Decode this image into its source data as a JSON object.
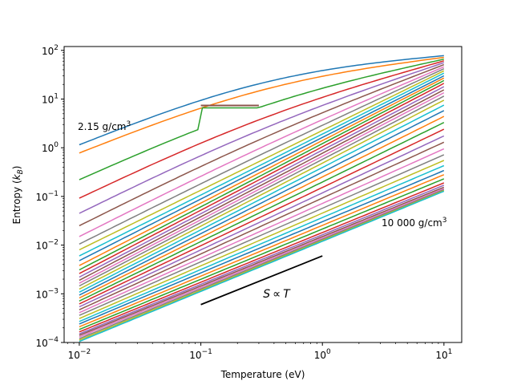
{
  "chart_data": {
    "type": "line",
    "xscale": "log",
    "yscale": "log",
    "xlabel": "Temperature (eV)",
    "ylabel": "Entropy (k_B)",
    "ylabel_main": "Entropy (",
    "ylabel_sym": "k",
    "ylabel_sub": "B",
    "ylabel_close": ")",
    "xlim": [
      0.0075,
      14
    ],
    "ylim": [
      0.0001,
      120
    ],
    "xticks": [
      {
        "value": 0.01,
        "base": "10",
        "exp": "−2"
      },
      {
        "value": 0.1,
        "base": "10",
        "exp": "−1"
      },
      {
        "value": 1,
        "base": "10",
        "exp": "0"
      },
      {
        "value": 10,
        "base": "10",
        "exp": "1"
      }
    ],
    "yticks": [
      {
        "value": 0.0001,
        "base": "10",
        "exp": "−4"
      },
      {
        "value": 0.001,
        "base": "10",
        "exp": "−3"
      },
      {
        "value": 0.01,
        "base": "10",
        "exp": "−2"
      },
      {
        "value": 0.1,
        "base": "10",
        "exp": "−1"
      },
      {
        "value": 1,
        "base": "10",
        "exp": "0"
      },
      {
        "value": 10,
        "base": "10",
        "exp": "1"
      },
      {
        "value": 100,
        "base": "10",
        "exp": "2"
      }
    ],
    "series_summary": {
      "count": 40,
      "density_min_label": "2.15 g/cm³",
      "density_max_label": "10 000 g/cm³",
      "x_range": [
        0.01,
        10
      ],
      "start_values_at_T_0_01": [
        1.15,
        0.78,
        0.22,
        0.092,
        0.045,
        0.025,
        0.015,
        0.0105,
        0.008,
        0.006,
        0.0048,
        0.0038,
        0.0031,
        0.0026,
        0.0022,
        0.0019,
        0.00165,
        0.00145,
        0.00125,
        0.00108,
        0.00094,
        0.00082,
        0.00071,
        0.00062,
        0.00054,
        0.00047,
        0.00041,
        0.00036,
        0.00031,
        0.00027,
        0.00024,
        0.00021,
        0.000185,
        0.000165,
        0.00015,
        0.00014,
        0.00013,
        0.00012,
        0.000112,
        0.000105
      ],
      "saturation_value": 7.4,
      "saturation_start_T": 0.1,
      "high_T_end_values_at_10": [
        78,
        72,
        66,
        61,
        56,
        51,
        46,
        42,
        38,
        34,
        30,
        27,
        24,
        21,
        18,
        15.5,
        13.5,
        11.5,
        9.5,
        7.5,
        5.8,
        4.4,
        3.3,
        2.4,
        1.75,
        1.3,
        0.95,
        0.72,
        0.55,
        0.43,
        0.34,
        0.28,
        0.23,
        0.19,
        0.17,
        0.155,
        0.145,
        0.138,
        0.132,
        0.128
      ]
    },
    "colors": [
      "#1f77b4",
      "#ff7f0e",
      "#2ca02c",
      "#d62728",
      "#9467bd",
      "#8c564b",
      "#e377c2",
      "#7f7f7f",
      "#bcbd22",
      "#17becf"
    ],
    "reference_line": {
      "x": [
        0.1,
        1.0
      ],
      "y": [
        0.0006,
        0.006
      ],
      "color": "#000000"
    },
    "annotations": {
      "low_density": "2.15 g/cm",
      "low_density_sup": "3",
      "high_density": "10 000 g/cm",
      "high_density_sup": "3",
      "proportional_S": "S",
      "proportional_sym": "∝",
      "proportional_T": "T"
    }
  }
}
